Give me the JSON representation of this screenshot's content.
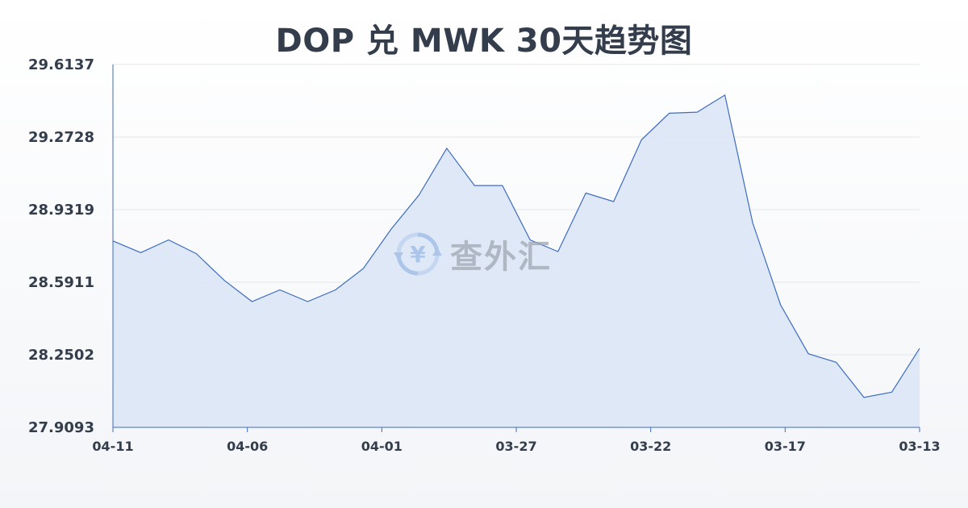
{
  "chart_data": {
    "type": "area",
    "title": "DOP 兑 MWK 30天趋势图",
    "xlabel": "",
    "ylabel": "",
    "ylim": [
      27.9093,
      29.6137
    ],
    "yticks": [
      "29.6137",
      "29.2728",
      "28.9319",
      "28.5911",
      "28.2502",
      "27.9093"
    ],
    "xticks": [
      "04-11",
      "04-06",
      "04-01",
      "03-27",
      "03-22",
      "03-17",
      "03-13"
    ],
    "grid": true,
    "colors": {
      "line": "#3d6cc0",
      "fill": "#dbe5f6",
      "grid": "#e3e6ea",
      "axis": "#3d6cc0"
    },
    "values": [
      28.785,
      28.73,
      28.79,
      28.725,
      28.6,
      28.5,
      28.555,
      28.5,
      28.555,
      28.655,
      28.84,
      29.0,
      29.22,
      29.045,
      29.045,
      28.79,
      28.735,
      29.01,
      28.97,
      29.26,
      29.385,
      29.39,
      29.47,
      28.87,
      28.485,
      28.255,
      28.215,
      28.05,
      28.075,
      28.28
    ]
  },
  "watermark": {
    "text": "查外汇",
    "icon": "yen-exchange-icon"
  }
}
